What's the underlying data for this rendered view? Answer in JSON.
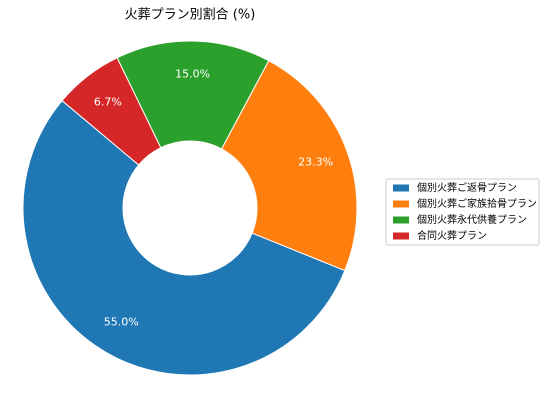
{
  "chart_data": {
    "type": "pie",
    "title": "火葬プラン別割合 (%)",
    "categories": [
      "個別火葬ご返骨プラン",
      "個別火葬ご家族拾骨プラン",
      "個別火葬永代供養プラン",
      "合同火葬プラン"
    ],
    "values": [
      55.0,
      23.3,
      15.0,
      6.7
    ],
    "value_labels": [
      "55.0%",
      "23.3%",
      "15.0%",
      "6.7%"
    ],
    "colors": [
      "#1f77b4",
      "#ff7f0e",
      "#2ca02c",
      "#d62728"
    ],
    "legend": "right"
  }
}
